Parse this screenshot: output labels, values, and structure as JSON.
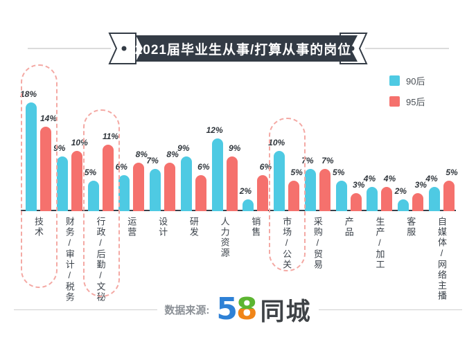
{
  "title": {
    "text": "2021届毕业生从事/打算从事的岗位"
  },
  "legend": {
    "items": [
      {
        "label": "90后",
        "color": "#4ecae3"
      },
      {
        "label": "95后",
        "color": "#f5716d"
      }
    ]
  },
  "chart_data": {
    "type": "bar",
    "title": "2021届毕业生从事/打算从事的岗位",
    "unit": "%",
    "categories": [
      "技术",
      "财务/审计/税务",
      "行政/后勤/文秘",
      "运营",
      "设计",
      "研发",
      "人力资源",
      "销售",
      "市场/公关",
      "采购/贸易",
      "产品",
      "生产/加工",
      "客服",
      "自媒体/网络主播"
    ],
    "series": [
      {
        "name": "90后",
        "color": "#4ecae3",
        "values": [
          18,
          9,
          5,
          6,
          7,
          9,
          12,
          2,
          10,
          7,
          5,
          4,
          2,
          4
        ]
      },
      {
        "name": "95后",
        "color": "#f5716d",
        "values": [
          14,
          10,
          11,
          8,
          8,
          6,
          9,
          6,
          5,
          7,
          3,
          4,
          3,
          5
        ]
      }
    ],
    "value_label_format": "{v}%",
    "highlighted_category_indices": [
      0,
      2,
      8
    ],
    "xlabel": "",
    "ylabel": "",
    "ylim": [
      0,
      20
    ],
    "grid": false,
    "legend_position": "top-right"
  },
  "footer": {
    "source_label": "数据来源:",
    "logo": {
      "five": "5",
      "eight": "8",
      "suffix": "同城"
    },
    "colors": {
      "five": "#2e81d6",
      "eight_top": "#5cb531",
      "eight_bottom": "#f08519",
      "suffix": "#3f4347"
    }
  }
}
